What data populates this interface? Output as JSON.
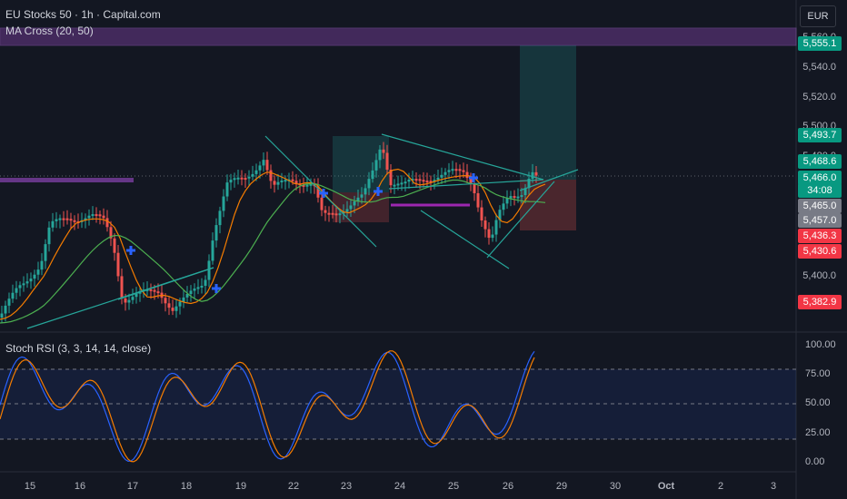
{
  "header": {
    "symbol_line": "EU Stocks 50 · 1h · Capital.com",
    "indicator_line": "MA Cross (20, 50)",
    "currency": "EUR"
  },
  "price_axis": {
    "labels": [
      "5,560.0",
      "5,540.0",
      "5,520.0",
      "5,500.0",
      "5,480.0",
      "5,400.0"
    ],
    "badges": [
      {
        "text": "5,555.1",
        "color": "#089981"
      },
      {
        "text": "5,493.7",
        "color": "#089981"
      },
      {
        "text": "5,468.6",
        "color": "#089981"
      },
      {
        "text": "5,466.0",
        "color": "#089981"
      },
      {
        "text": "34:08",
        "color": "#089981"
      },
      {
        "text": "5,465.0",
        "color": "#787b86"
      },
      {
        "text": "5,457.0",
        "color": "#787b86"
      },
      {
        "text": "5,436.3",
        "color": "#f23645"
      },
      {
        "text": "5,430.6",
        "color": "#f23645"
      },
      {
        "text": "5,382.9",
        "color": "#f23645"
      }
    ]
  },
  "rsi": {
    "title": "Stoch RSI (3, 3, 14, 14, close)",
    "labels": [
      "100.00",
      "75.00",
      "50.00",
      "25.00",
      "0.00"
    ]
  },
  "time_axis": {
    "labels": [
      "15",
      "16",
      "17",
      "18",
      "19",
      "22",
      "23",
      "24",
      "25",
      "26",
      "29",
      "30",
      "Oct",
      "2",
      "3"
    ]
  },
  "colors": {
    "background": "#131722",
    "up": "#26a69a",
    "down": "#ef5350",
    "ma_fast": "#f57c00",
    "ma_slow": "#4caf50",
    "zone": "#7b3fa1",
    "trendline": "#26a69a",
    "rsi_k": "#2962ff",
    "rsi_d": "#f57c00"
  }
}
